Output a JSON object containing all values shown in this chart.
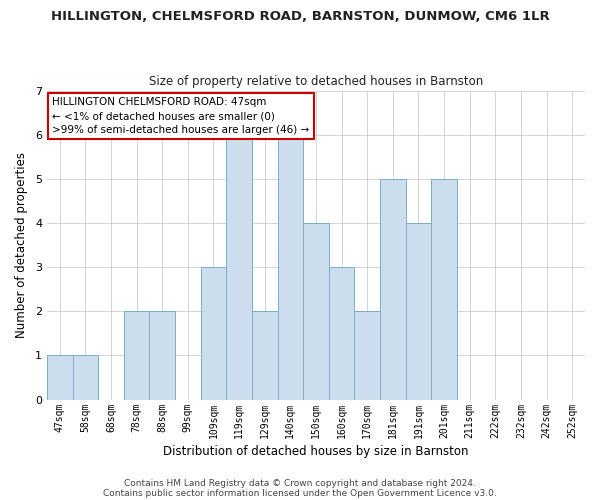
{
  "title": "HILLINGTON, CHELMSFORD ROAD, BARNSTON, DUNMOW, CM6 1LR",
  "subtitle": "Size of property relative to detached houses in Barnston",
  "xlabel": "Distribution of detached houses by size in Barnston",
  "ylabel": "Number of detached properties",
  "bar_color": "#ccdded",
  "bar_edge_color": "#7aaccc",
  "categories": [
    "47sqm",
    "58sqm",
    "68sqm",
    "78sqm",
    "88sqm",
    "99sqm",
    "109sqm",
    "119sqm",
    "129sqm",
    "140sqm",
    "150sqm",
    "160sqm",
    "170sqm",
    "181sqm",
    "191sqm",
    "201sqm",
    "211sqm",
    "222sqm",
    "232sqm",
    "242sqm",
    "252sqm"
  ],
  "values": [
    1,
    1,
    0,
    2,
    2,
    0,
    3,
    6,
    2,
    6,
    4,
    3,
    2,
    5,
    4,
    5,
    0,
    0,
    0,
    0,
    0
  ],
  "ylim": [
    0,
    7
  ],
  "yticks": [
    0,
    1,
    2,
    3,
    4,
    5,
    6,
    7
  ],
  "annotation_title": "HILLINGTON CHELMSFORD ROAD: 47sqm",
  "annotation_line1": "← <1% of detached houses are smaller (0)",
  "annotation_line2": ">99% of semi-detached houses are larger (46) →",
  "annotation_box_color": "#ffffff",
  "annotation_border_color": "#cc0000",
  "footer_line1": "Contains HM Land Registry data © Crown copyright and database right 2024.",
  "footer_line2": "Contains public sector information licensed under the Open Government Licence v3.0.",
  "background_color": "#ffffff",
  "grid_color": "#cccccc",
  "title_fontsize": 9.5,
  "subtitle_fontsize": 8.5,
  "label_fontsize": 8.5,
  "tick_fontsize": 7,
  "footer_fontsize": 6.5,
  "annotation_fontsize": 7.5
}
